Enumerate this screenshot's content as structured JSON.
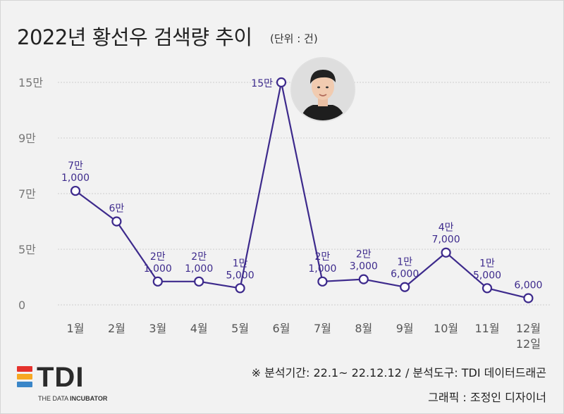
{
  "header": {
    "title": "2022년 황선우 검색량 추이",
    "unit": "(단위 : 건)"
  },
  "chart_data": {
    "type": "line",
    "categories": [
      "1월",
      "2월",
      "3월",
      "4월",
      "5월",
      "6월",
      "7월",
      "8월",
      "9월",
      "10월",
      "11월",
      "12월\n12일"
    ],
    "values": [
      71000,
      60000,
      21000,
      21000,
      15000,
      150000,
      21000,
      23000,
      16000,
      47000,
      15000,
      6000
    ],
    "data_labels": [
      [
        "7만",
        "1,000"
      ],
      [
        "6만"
      ],
      [
        "2만",
        "1,000"
      ],
      [
        "2만",
        "1,000"
      ],
      [
        "1만",
        "5,000"
      ],
      [
        "15만"
      ],
      [
        "2만",
        "1,000"
      ],
      [
        "2만",
        "3,000"
      ],
      [
        "1만",
        "6,000"
      ],
      [
        "4만",
        "7,000"
      ],
      [
        "1만",
        "5,000"
      ],
      [
        "6,000"
      ]
    ],
    "y_ticks": [
      {
        "value": 0,
        "label": "0"
      },
      {
        "value": 50000,
        "label": "5만"
      },
      {
        "value": 70000,
        "label": "7만"
      },
      {
        "value": 90000,
        "label": "9만"
      },
      {
        "value": 150000,
        "label": "15만"
      }
    ],
    "y_scale": "non-linear (ticks as printed)",
    "ylim": [
      0,
      150000
    ],
    "grid": "horizontal dashed",
    "line_color": "#3d2a8c",
    "marker_fill": "#ffffff"
  },
  "photo": {
    "icon": "athlete-portrait-icon"
  },
  "footer": {
    "logo": {
      "text": "TDI",
      "subtitle_prefix": "THE DATA ",
      "subtitle_bold": "INCUBATOR",
      "bar_colors": [
        "#e5322d",
        "#f7a823",
        "#3a86c8"
      ]
    },
    "source": "※ 분석기간: 22.1~ 22.12.12 / 분석도구: TDI 데이터드래곤",
    "credit": "그래픽 : 조정인 디자이너"
  }
}
